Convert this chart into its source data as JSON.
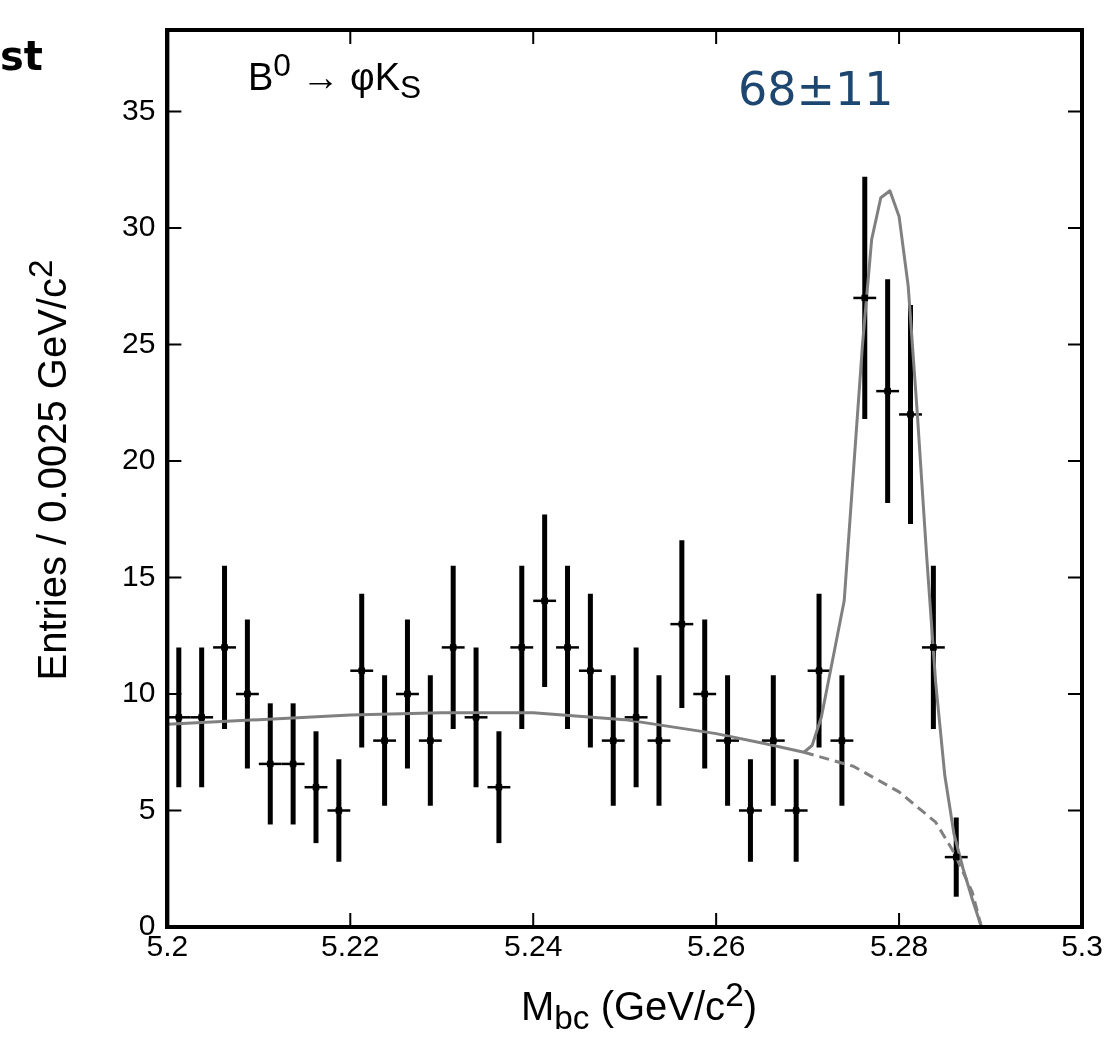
{
  "chart_data": {
    "type": "scatter",
    "xlabel": "M$_{bc}$ (GeV/c$^{2}$)",
    "ylabel": "Entries / 0.0025 GeV/c$^{2}$",
    "annotations": [
      "st",
      "B$^{0}$ → φK$_{S}$",
      "68±11"
    ],
    "xlim": [
      5.2,
      5.3
    ],
    "xticks": [
      5.2,
      5.22,
      5.24,
      5.26,
      5.28,
      5.3
    ],
    "ylim": [
      0,
      38.5
    ],
    "yticks": [
      0,
      5,
      10,
      15,
      20,
      25,
      30,
      35
    ],
    "grid": false,
    "legend": false,
    "series": [
      {
        "type": "scatter",
        "marker": "square",
        "color": "#000000",
        "x": [
          5.20125,
          5.20375,
          5.20625,
          5.20875,
          5.21125,
          5.21375,
          5.21625,
          5.21875,
          5.22125,
          5.22375,
          5.22625,
          5.22875,
          5.23125,
          5.23375,
          5.23625,
          5.23875,
          5.24125,
          5.24375,
          5.24625,
          5.24875,
          5.25125,
          5.25375,
          5.25625,
          5.25875,
          5.26125,
          5.26375,
          5.26625,
          5.26875,
          5.27125,
          5.27375,
          5.27625,
          5.27875,
          5.28125,
          5.28375,
          5.28625
        ],
        "values": [
          9,
          9,
          12,
          10,
          7,
          7,
          6,
          5,
          11,
          8,
          10,
          8,
          12,
          9,
          6,
          12,
          14,
          12,
          11,
          8,
          9,
          8,
          13,
          10,
          8,
          5,
          8,
          5,
          11,
          8,
          27,
          23,
          22,
          12,
          3
        ],
        "errors": [
          3,
          3,
          3.5,
          3.2,
          2.6,
          2.6,
          2.4,
          2.2,
          3.3,
          2.8,
          3.2,
          2.8,
          3.5,
          3,
          2.4,
          3.5,
          3.7,
          3.5,
          3.3,
          2.8,
          3,
          2.8,
          3.6,
          3.2,
          2.8,
          2.2,
          2.8,
          2.2,
          3.3,
          2.8,
          5.2,
          4.8,
          4.7,
          3.5,
          1.7
        ],
        "xerrors": [
          0.00125,
          0.00125,
          0.00125,
          0.00125,
          0.00125,
          0.00125,
          0.00125,
          0.00125,
          0.00125,
          0.00125,
          0.00125,
          0.00125,
          0.00125,
          0.00125,
          0.00125,
          0.00125,
          0.00125,
          0.00125,
          0.00125,
          0.00125,
          0.00125,
          0.00125,
          0.00125,
          0.00125,
          0.00125,
          0.00125,
          0.00125,
          0.00125,
          0.00125,
          0.00125,
          0.00125,
          0.00125,
          0.00125,
          0.00125,
          0.00125
        ]
      },
      {
        "type": "line",
        "color": "#808080",
        "line_style": "solid",
        "x": [
          5.2,
          5.21,
          5.22,
          5.23,
          5.24,
          5.25,
          5.26,
          5.265,
          5.2696,
          5.2705,
          5.2715,
          5.2725,
          5.274,
          5.276,
          5.277,
          5.278,
          5.279,
          5.28,
          5.281,
          5.282,
          5.283,
          5.284,
          5.285,
          5.286,
          5.287,
          5.288,
          5.289,
          5.295,
          5.3
        ],
        "values": [
          8.7,
          8.9,
          9.1,
          9.2,
          9.2,
          8.9,
          8.3,
          7.9,
          7.5,
          7.8,
          9,
          11,
          14,
          25,
          29.5,
          31.3,
          31.6,
          30.5,
          27.5,
          22,
          16,
          10.5,
          6.5,
          4,
          2.5,
          1.2,
          0,
          0,
          0
        ]
      },
      {
        "type": "line",
        "color": "#808080",
        "line_style": "dashed",
        "x": [
          5.2696,
          5.275,
          5.28,
          5.284,
          5.286,
          5.288,
          5.289
        ],
        "values": [
          7.5,
          6.9,
          5.8,
          4.5,
          3.2,
          1.5,
          0
        ]
      }
    ]
  }
}
